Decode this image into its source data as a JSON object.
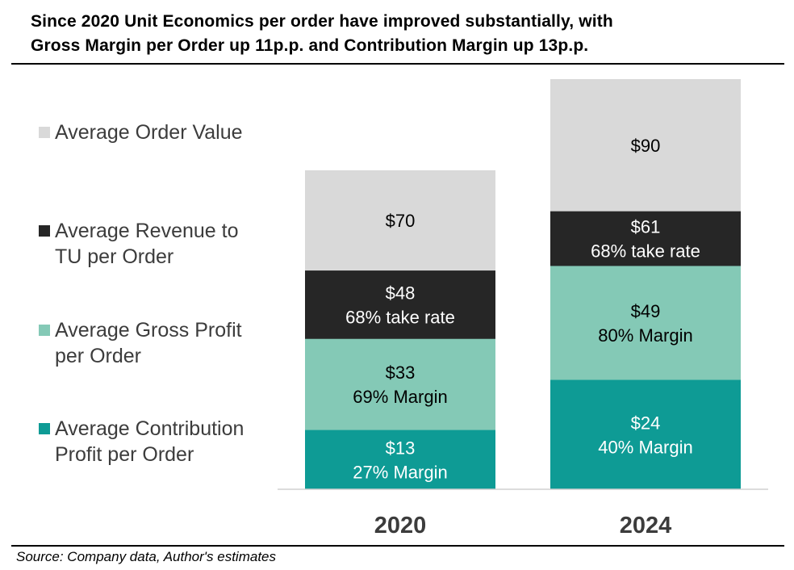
{
  "header": {
    "title_line1": "Since 2020 Unit Economics per order have improved substantially, with",
    "title_line2": "Gross Margin per Order up 11p.p. and Contribution Margin up 13p.p."
  },
  "footer": {
    "source": "Source: Company data, Author's estimates"
  },
  "legend": [
    {
      "lines": [
        "Average Order Value"
      ],
      "color": "#d9d9d9"
    },
    {
      "lines": [
        "Average Revenue to",
        "TU per Order"
      ],
      "color": "#262626"
    },
    {
      "lines": [
        "Average Gross Profit",
        "per Order"
      ],
      "color": "#84c9b6"
    },
    {
      "lines": [
        "Average Contribution",
        "Profit per Order"
      ],
      "color": "#0e9b95"
    }
  ],
  "chart_data": {
    "type": "bar",
    "stacked": false,
    "overlapping_bars": true,
    "categories": [
      "2020",
      "2024"
    ],
    "series": [
      {
        "name": "Average Order Value",
        "values": [
          70,
          90
        ],
        "labels": [
          [
            "$70"
          ],
          [
            "$90"
          ]
        ],
        "color": "#d9d9d9",
        "text_color": "#000000"
      },
      {
        "name": "Average Revenue to TU per Order",
        "values": [
          48,
          61
        ],
        "labels": [
          [
            "$48",
            "68% take rate"
          ],
          [
            "$61",
            "68% take rate"
          ]
        ],
        "color": "#262626",
        "text_color": "#ffffff"
      },
      {
        "name": "Average Gross Profit per Order",
        "values": [
          33,
          49
        ],
        "labels": [
          [
            "$33",
            "69% Margin"
          ],
          [
            "$49",
            "80% Margin"
          ]
        ],
        "color": "#84c9b6",
        "text_color": "#000000"
      },
      {
        "name": "Average Contribution Profit per Order",
        "values": [
          13,
          24
        ],
        "labels": [
          [
            "$13",
            "27% Margin"
          ],
          [
            "$24",
            "40% Margin"
          ]
        ],
        "color": "#0e9b95",
        "text_color": "#ffffff"
      }
    ],
    "ylim": [
      0,
      90
    ],
    "grid": false,
    "legend_position": "left"
  }
}
